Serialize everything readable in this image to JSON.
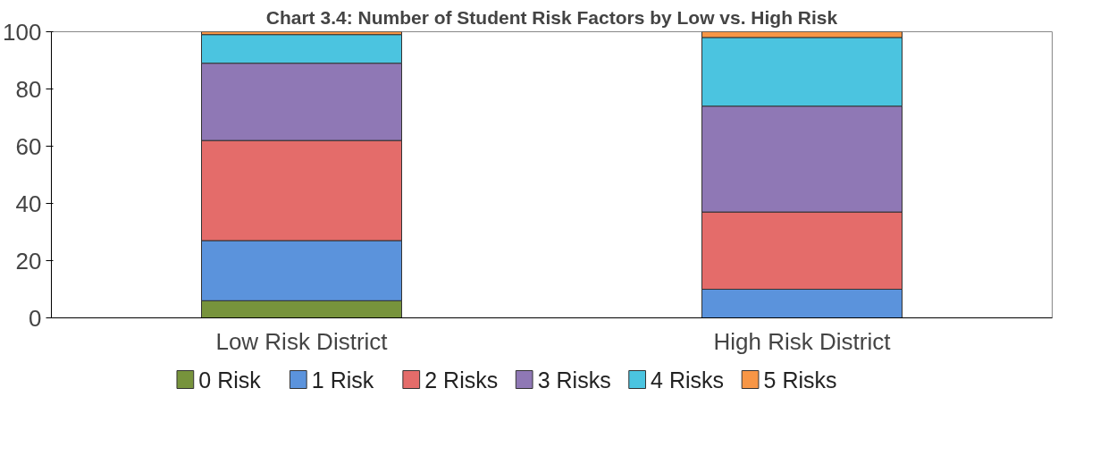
{
  "chart_data": {
    "type": "bar",
    "title": "Chart 3.4: Number of Student Risk Factors by Low vs. High Risk",
    "categories": [
      "Low Risk District",
      "High Risk District"
    ],
    "stacked": true,
    "ylim": [
      0,
      100
    ],
    "yticks": [
      0,
      20,
      40,
      60,
      80,
      100
    ],
    "grid": false,
    "legend": "bottom",
    "series": [
      {
        "name": "0 Risk",
        "color": "#77933c",
        "values": [
          6,
          0
        ]
      },
      {
        "name": "1 Risk",
        "color": "#5b93dc",
        "values": [
          21,
          10
        ]
      },
      {
        "name": "2 Risks",
        "color": "#e46c6a",
        "values": [
          35,
          27
        ]
      },
      {
        "name": "3 Risks",
        "color": "#8f78b5",
        "values": [
          27,
          37
        ]
      },
      {
        "name": "4 Risks",
        "color": "#4bc4e0",
        "values": [
          10,
          24
        ]
      },
      {
        "name": "5 Risks",
        "color": "#f79646",
        "values": [
          1,
          2
        ]
      }
    ]
  }
}
